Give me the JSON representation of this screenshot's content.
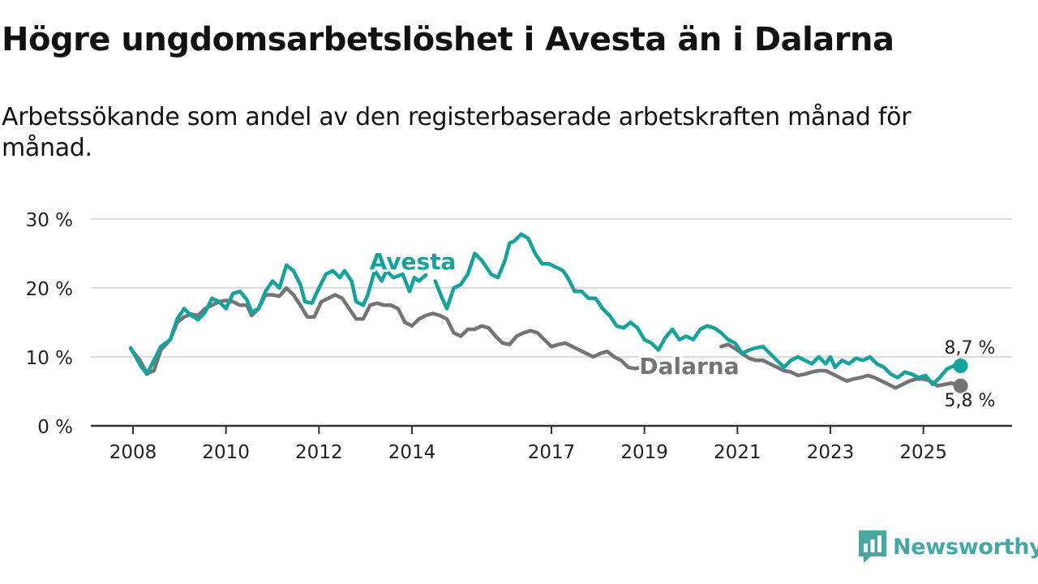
{
  "title": "Högre ungdomsarbetslöshet i Avesta än i Dalarna",
  "subtitle": "Arbetssökande som andel av den registerbaserade arbetskraften månad för månad.",
  "brand": {
    "name": "Newsworthy",
    "icon": "newsworthy-logo-icon",
    "color": "#47A7A2"
  },
  "colors": {
    "avesta": "#13A39A",
    "dalarna": "#747478",
    "grid": "#dddddd",
    "axis": "#333333"
  },
  "chart_data": {
    "type": "line",
    "title": "Högre ungdomsarbetslöshet i Avesta än i Dalarna",
    "xlabel": "",
    "ylabel": "",
    "xlim": [
      2008.0,
      2026.0
    ],
    "ylim": [
      0,
      30
    ],
    "y_ticks": [
      0,
      10,
      20,
      30
    ],
    "y_tick_labels": [
      "0 %",
      "10 %",
      "20 %",
      "30 %"
    ],
    "x_ticks": [
      2008,
      2010,
      2012,
      2014,
      2017,
      2019,
      2021,
      2023,
      2025
    ],
    "x_tick_labels": [
      "2008",
      "2010",
      "2012",
      "2014",
      "2017",
      "2019",
      "2021",
      "2023",
      "2025"
    ],
    "grid": true,
    "series": [
      {
        "name": "Avesta",
        "label": "Avesta",
        "end_label": "8,7 %",
        "points": [
          [
            2007.95,
            11.3
          ],
          [
            2008.15,
            8.9
          ],
          [
            2008.3,
            7.5
          ],
          [
            2008.45,
            9.5
          ],
          [
            2008.6,
            11.5
          ],
          [
            2008.8,
            12.5
          ],
          [
            2008.95,
            15.5
          ],
          [
            2009.1,
            17.0
          ],
          [
            2009.25,
            16.0
          ],
          [
            2009.4,
            15.4
          ],
          [
            2009.55,
            16.5
          ],
          [
            2009.7,
            18.5
          ],
          [
            2009.85,
            18.0
          ],
          [
            2010.0,
            17.0
          ],
          [
            2010.15,
            19.2
          ],
          [
            2010.3,
            19.5
          ],
          [
            2010.45,
            18.3
          ],
          [
            2010.55,
            16.5
          ],
          [
            2010.7,
            17.0
          ],
          [
            2010.85,
            19.5
          ],
          [
            2011.0,
            21.0
          ],
          [
            2011.15,
            20.0
          ],
          [
            2011.3,
            23.3
          ],
          [
            2011.45,
            22.5
          ],
          [
            2011.6,
            20.5
          ],
          [
            2011.7,
            18.0
          ],
          [
            2011.85,
            17.8
          ],
          [
            2012.0,
            20.0
          ],
          [
            2012.15,
            22.0
          ],
          [
            2012.3,
            22.5
          ],
          [
            2012.45,
            21.5
          ],
          [
            2012.55,
            22.5
          ],
          [
            2012.7,
            21.0
          ],
          [
            2012.8,
            18.0
          ],
          [
            2012.95,
            17.5
          ],
          [
            2013.05,
            19.0
          ],
          [
            2013.2,
            22.5
          ],
          [
            2013.35,
            21.0
          ],
          [
            2013.45,
            22.5
          ],
          [
            2013.6,
            21.5
          ],
          [
            2013.8,
            22.0
          ],
          [
            2013.95,
            19.5
          ],
          [
            2014.05,
            21.5
          ],
          [
            2014.15,
            21.0
          ],
          [
            2014.3,
            21.9
          ],
          [
            null,
            null
          ],
          [
            2014.5,
            21.0
          ],
          [
            2014.65,
            18.5
          ],
          [
            2014.75,
            17.0
          ],
          [
            2014.9,
            20.0
          ],
          [
            2015.05,
            20.5
          ],
          [
            2015.2,
            22.0
          ],
          [
            2015.35,
            25.0
          ],
          [
            2015.5,
            24.0
          ],
          [
            2015.7,
            22.0
          ],
          [
            2015.85,
            21.5
          ],
          [
            2016.0,
            24.0
          ],
          [
            2016.1,
            26.5
          ],
          [
            2016.2,
            26.8
          ],
          [
            2016.35,
            27.8
          ],
          [
            2016.5,
            27.2
          ],
          [
            2016.65,
            25.0
          ],
          [
            2016.8,
            23.5
          ],
          [
            2016.95,
            23.5
          ],
          [
            2017.1,
            23.0
          ],
          [
            2017.25,
            22.5
          ],
          [
            2017.35,
            21.5
          ],
          [
            2017.5,
            19.5
          ],
          [
            2017.65,
            19.5
          ],
          [
            2017.8,
            18.5
          ],
          [
            2017.95,
            18.5
          ],
          [
            2018.1,
            17.0
          ],
          [
            2018.25,
            16.0
          ],
          [
            2018.4,
            14.5
          ],
          [
            2018.55,
            14.2
          ],
          [
            2018.7,
            15.0
          ],
          [
            2018.85,
            14.2
          ],
          [
            2019.0,
            12.5
          ],
          [
            2019.15,
            12.0
          ],
          [
            2019.3,
            11.0
          ],
          [
            2019.45,
            12.8
          ],
          [
            2019.6,
            14.0
          ],
          [
            2019.75,
            12.5
          ],
          [
            2019.9,
            13.0
          ],
          [
            2020.05,
            12.5
          ],
          [
            2020.2,
            14.0
          ],
          [
            2020.35,
            14.5
          ],
          [
            2020.5,
            14.2
          ],
          [
            2020.65,
            13.5
          ],
          [
            2020.8,
            12.5
          ],
          [
            2020.95,
            12.0
          ],
          [
            2021.1,
            10.5
          ],
          [
            2021.25,
            11.0
          ],
          [
            2021.4,
            11.3
          ],
          [
            2021.55,
            11.5
          ],
          [
            2021.7,
            10.5
          ],
          [
            2021.85,
            9.5
          ],
          [
            2022.0,
            8.5
          ],
          [
            2022.15,
            9.5
          ],
          [
            2022.3,
            10.0
          ],
          [
            2022.45,
            9.5
          ],
          [
            2022.6,
            9.0
          ],
          [
            2022.75,
            10.0
          ],
          [
            2022.9,
            9.0
          ],
          [
            2023.0,
            10.0
          ],
          [
            2023.1,
            8.5
          ],
          [
            2023.25,
            9.5
          ],
          [
            2023.4,
            9.0
          ],
          [
            2023.55,
            9.8
          ],
          [
            2023.7,
            9.5
          ],
          [
            2023.85,
            10.0
          ],
          [
            2024.0,
            9.0
          ],
          [
            2024.15,
            8.5
          ],
          [
            2024.3,
            7.5
          ],
          [
            2024.45,
            7.0
          ],
          [
            2024.6,
            7.8
          ],
          [
            2024.75,
            7.5
          ],
          [
            2024.9,
            7.0
          ],
          [
            2025.05,
            7.3
          ],
          [
            2025.2,
            6.0
          ],
          [
            2025.35,
            7.0
          ],
          [
            2025.5,
            8.2
          ],
          [
            2025.65,
            8.7
          ],
          [
            2025.8,
            8.7
          ]
        ]
      },
      {
        "name": "Dalarna",
        "label": "Dalarna",
        "end_label": "5,8 %",
        "points": [
          [
            2007.95,
            11.2
          ],
          [
            2008.15,
            9.5
          ],
          [
            2008.3,
            7.6
          ],
          [
            2008.45,
            8.0
          ],
          [
            2008.6,
            11.0
          ],
          [
            2008.8,
            12.5
          ],
          [
            2008.95,
            15.0
          ],
          [
            2009.1,
            15.8
          ],
          [
            2009.25,
            16.2
          ],
          [
            2009.4,
            16.0
          ],
          [
            2009.55,
            17.0
          ],
          [
            2009.7,
            17.5
          ],
          [
            2009.85,
            18.0
          ],
          [
            2010.0,
            18.2
          ],
          [
            2010.15,
            18.0
          ],
          [
            2010.3,
            17.5
          ],
          [
            2010.45,
            17.5
          ],
          [
            2010.55,
            16.0
          ],
          [
            2010.7,
            17.0
          ],
          [
            2010.85,
            19.0
          ],
          [
            2011.0,
            19.0
          ],
          [
            2011.15,
            18.8
          ],
          [
            2011.3,
            20.0
          ],
          [
            2011.45,
            19.0
          ],
          [
            2011.6,
            17.5
          ],
          [
            2011.75,
            15.8
          ],
          [
            2011.9,
            15.8
          ],
          [
            2012.05,
            18.0
          ],
          [
            2012.2,
            18.5
          ],
          [
            2012.35,
            19.0
          ],
          [
            2012.5,
            18.5
          ],
          [
            2012.65,
            17.0
          ],
          [
            2012.8,
            15.5
          ],
          [
            2012.95,
            15.5
          ],
          [
            2013.1,
            17.5
          ],
          [
            2013.25,
            17.8
          ],
          [
            2013.4,
            17.5
          ],
          [
            2013.55,
            17.5
          ],
          [
            2013.7,
            17.0
          ],
          [
            2013.85,
            15.0
          ],
          [
            2014.0,
            14.5
          ],
          [
            2014.15,
            15.5
          ],
          [
            2014.3,
            16.0
          ],
          [
            2014.45,
            16.3
          ],
          [
            2014.6,
            16.0
          ],
          [
            2014.75,
            15.5
          ],
          [
            2014.9,
            13.5
          ],
          [
            2015.05,
            13.0
          ],
          [
            2015.2,
            14.0
          ],
          [
            2015.35,
            14.0
          ],
          [
            2015.5,
            14.5
          ],
          [
            2015.65,
            14.2
          ],
          [
            2015.8,
            13.0
          ],
          [
            2015.95,
            12.0
          ],
          [
            2016.1,
            11.8
          ],
          [
            2016.25,
            13.0
          ],
          [
            2016.4,
            13.5
          ],
          [
            2016.55,
            13.8
          ],
          [
            2016.7,
            13.5
          ],
          [
            2016.85,
            12.5
          ],
          [
            2017.0,
            11.5
          ],
          [
            2017.15,
            11.8
          ],
          [
            2017.3,
            12.0
          ],
          [
            2017.45,
            11.5
          ],
          [
            2017.6,
            11.0
          ],
          [
            2017.75,
            10.5
          ],
          [
            2017.9,
            10.0
          ],
          [
            2018.05,
            10.5
          ],
          [
            2018.2,
            10.8
          ],
          [
            2018.35,
            10.0
          ],
          [
            2018.5,
            9.5
          ],
          [
            2018.65,
            8.5
          ],
          [
            2018.8,
            8.3
          ],
          [
            2018.95,
            8.5
          ],
          [
            null,
            null
          ],
          [
            2020.65,
            11.5
          ],
          [
            2020.8,
            11.8
          ],
          [
            2020.95,
            11.2
          ],
          [
            2021.1,
            10.5
          ],
          [
            2021.25,
            9.8
          ],
          [
            2021.4,
            9.5
          ],
          [
            2021.55,
            9.5
          ],
          [
            2021.7,
            9.0
          ],
          [
            2021.85,
            8.5
          ],
          [
            2022.0,
            8.0
          ],
          [
            2022.15,
            7.8
          ],
          [
            2022.3,
            7.3
          ],
          [
            2022.45,
            7.5
          ],
          [
            2022.6,
            7.8
          ],
          [
            2022.75,
            8.0
          ],
          [
            2022.9,
            8.0
          ],
          [
            2023.05,
            7.5
          ],
          [
            2023.2,
            7.0
          ],
          [
            2023.35,
            6.5
          ],
          [
            2023.5,
            6.8
          ],
          [
            2023.65,
            7.0
          ],
          [
            2023.8,
            7.3
          ],
          [
            2023.95,
            7.0
          ],
          [
            2024.1,
            6.5
          ],
          [
            2024.25,
            6.0
          ],
          [
            2024.4,
            5.5
          ],
          [
            2024.55,
            6.0
          ],
          [
            2024.7,
            6.5
          ],
          [
            2024.85,
            6.8
          ],
          [
            2025.0,
            6.8
          ],
          [
            2025.15,
            6.5
          ],
          [
            2025.3,
            5.8
          ],
          [
            2025.45,
            6.0
          ],
          [
            2025.6,
            6.2
          ],
          [
            2025.8,
            5.8
          ]
        ]
      }
    ]
  }
}
